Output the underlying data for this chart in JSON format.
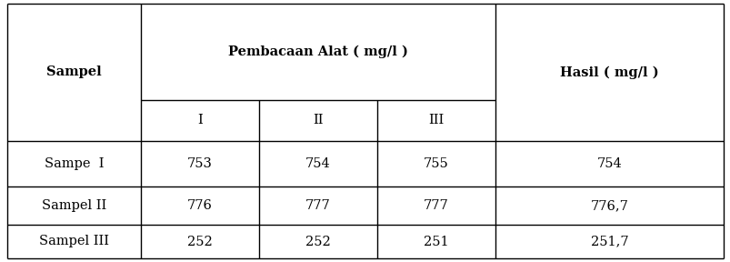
{
  "col_header_main": "Pembacaan Alat ( mg/l )",
  "col_header_sub": [
    "I",
    "II",
    "III"
  ],
  "col_sampel": "Sampel",
  "col_hasil": "Hasil ( mg/l )",
  "rows": [
    {
      "sampel": "Sampe  I",
      "vals": [
        "753",
        "754",
        "755"
      ],
      "hasil": "754"
    },
    {
      "sampel": "Sampel II",
      "vals": [
        "776",
        "777",
        "777"
      ],
      "hasil": "776,7"
    },
    {
      "sampel": "Sampel III",
      "vals": [
        "252",
        "252",
        "251"
      ],
      "hasil": "251,7"
    }
  ],
  "header_fontsize": 10.5,
  "cell_fontsize": 10.5,
  "background": "#ffffff",
  "line_color": "#000000",
  "text_color": "#000000",
  "fig_width": 8.04,
  "fig_height": 2.88,
  "dpi": 100
}
